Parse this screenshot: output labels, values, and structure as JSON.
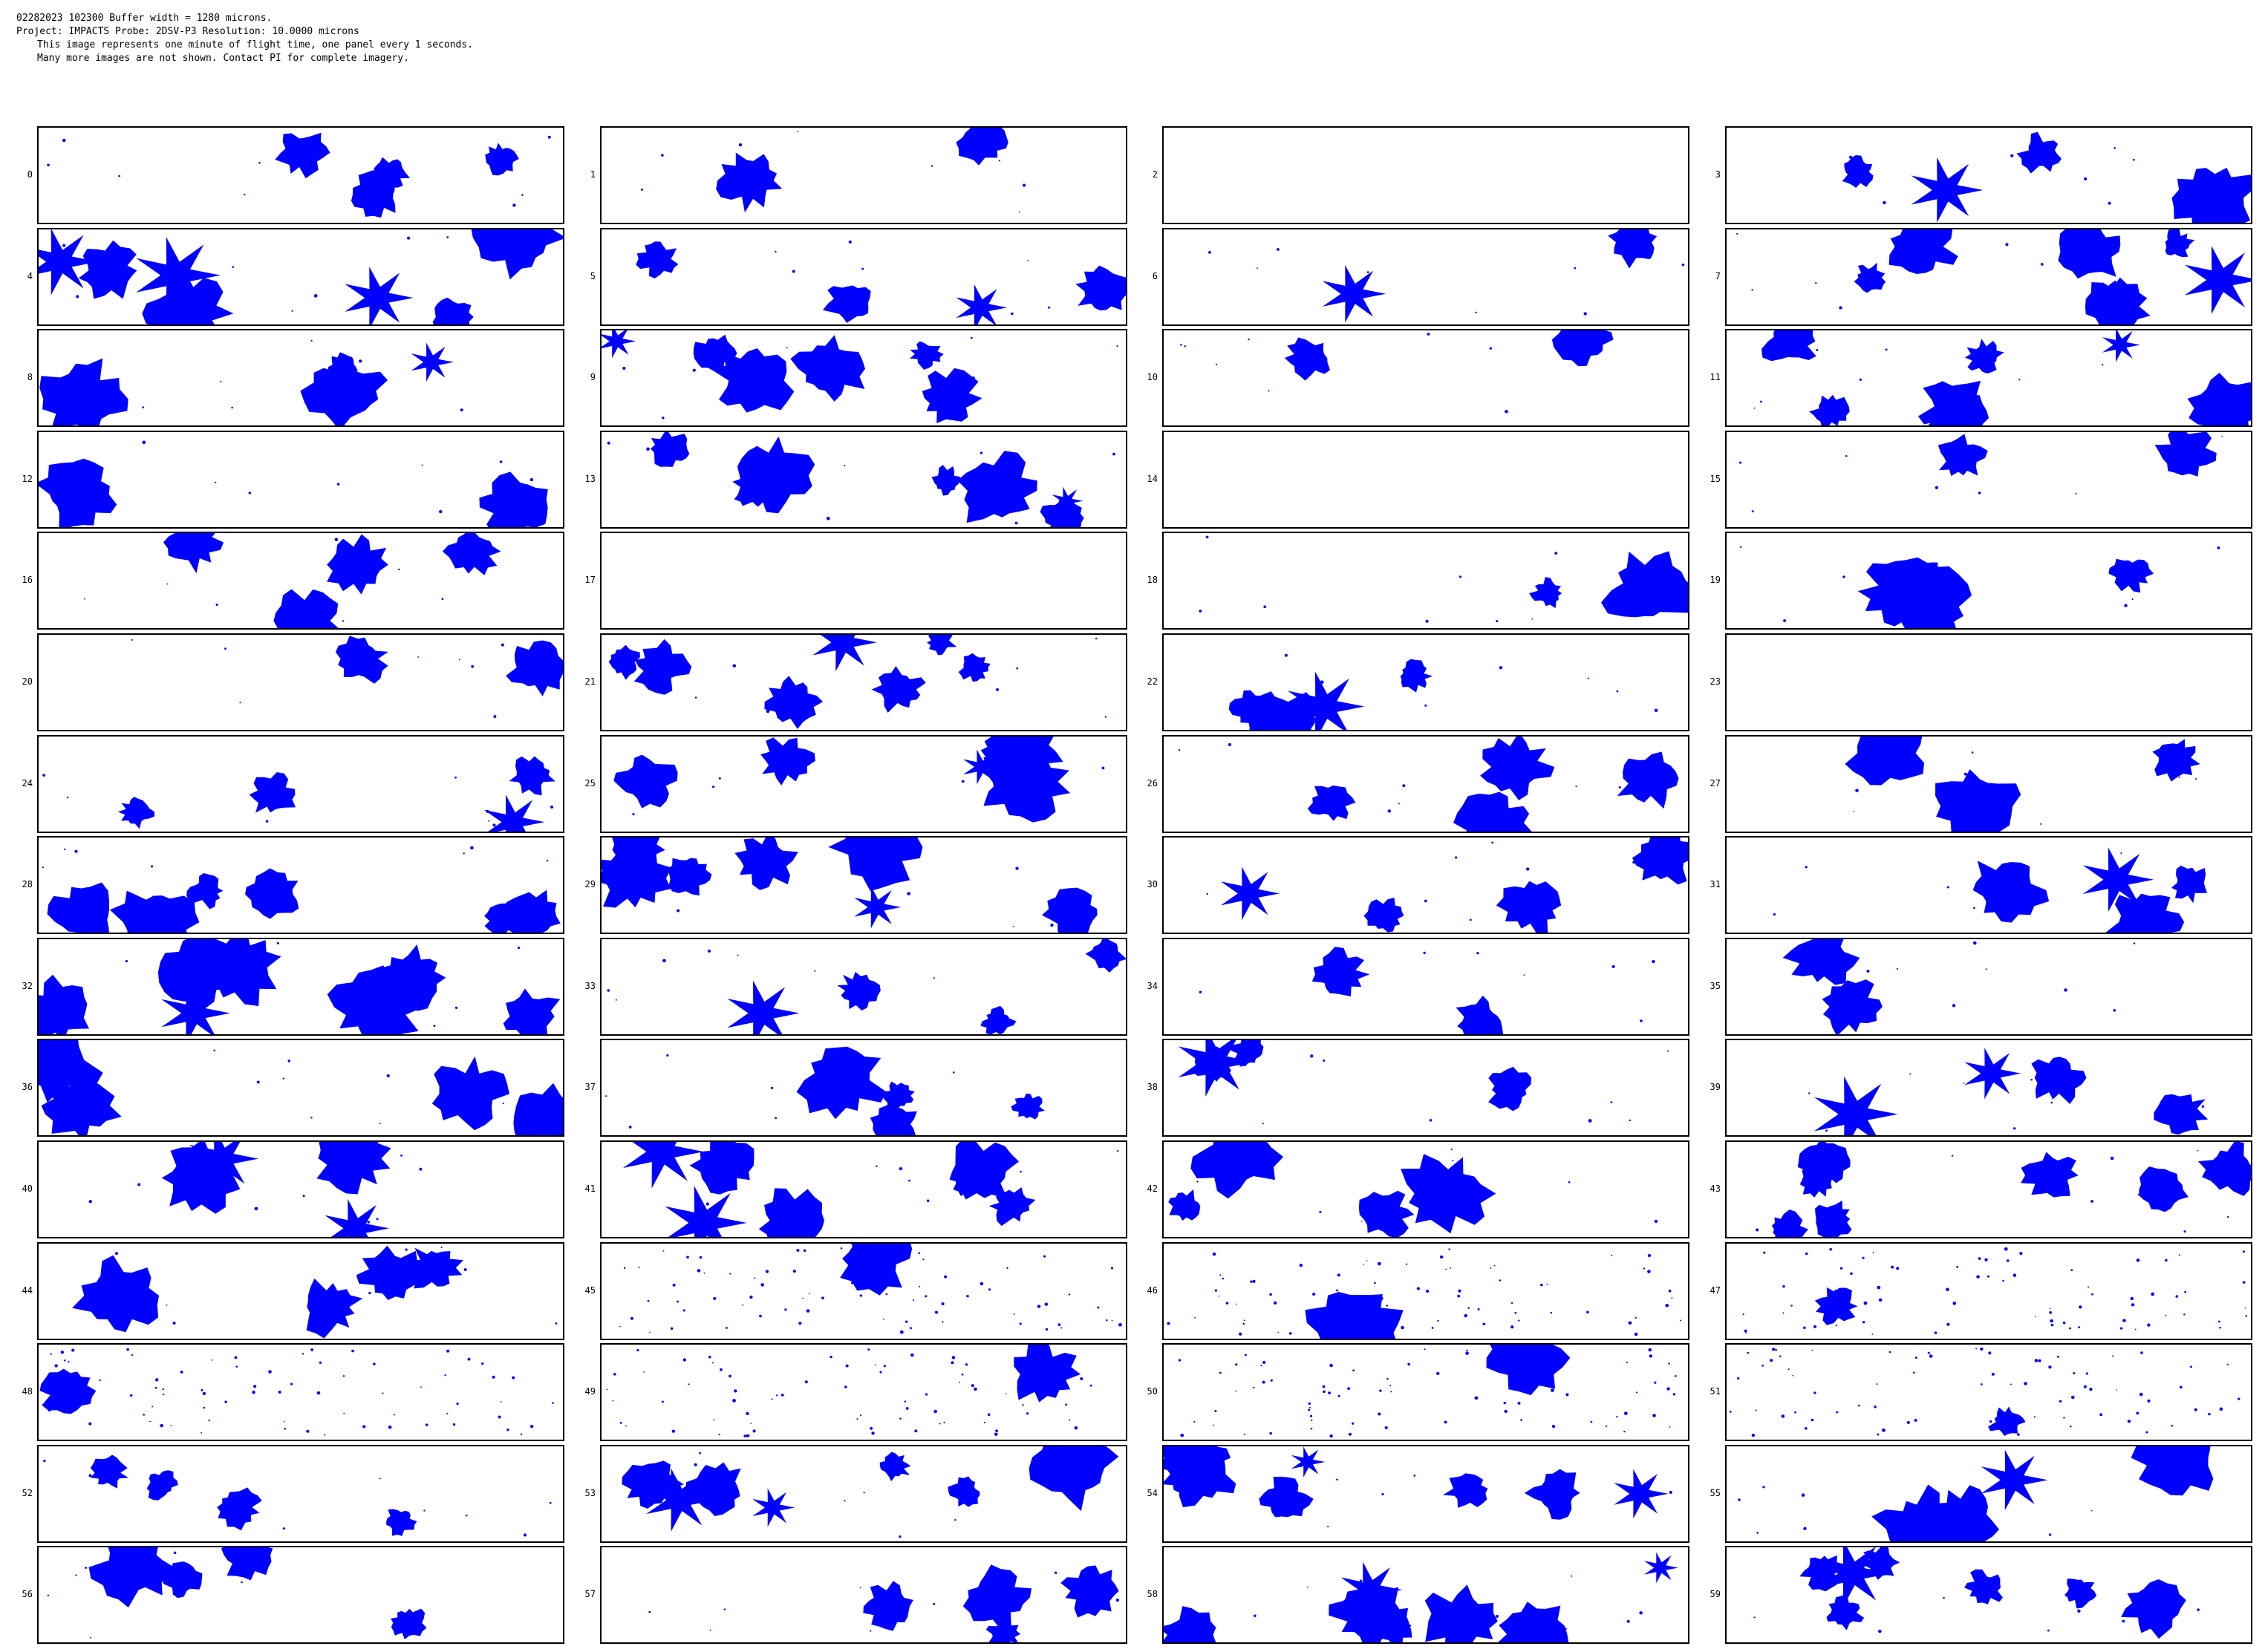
{
  "header": {
    "line1": "02282023 102300   Buffer width = 1280 microns.",
    "line2": "Project: IMPACTS   Probe: 2DSV-P3    Resolution: 10.0000 microns",
    "line3": "This image represents one minute of flight time, one panel every 1 seconds.",
    "line4": "Many more images are not shown.  Contact PI for complete imagery."
  },
  "colors": {
    "particle": "#0000ff",
    "border": "#000000",
    "background": "#ffffff"
  },
  "panels": [
    {
      "label": "0",
      "density": "medium",
      "seed": 11
    },
    {
      "label": "1",
      "density": "low",
      "seed": 12
    },
    {
      "label": "2",
      "density": "empty",
      "seed": 13
    },
    {
      "label": "3",
      "density": "medium",
      "seed": 14
    },
    {
      "label": "4",
      "density": "high",
      "seed": 15
    },
    {
      "label": "5",
      "density": "medium",
      "seed": 16
    },
    {
      "label": "6",
      "density": "low",
      "seed": 17
    },
    {
      "label": "7",
      "density": "high",
      "seed": 18
    },
    {
      "label": "8",
      "density": "medium",
      "seed": 19
    },
    {
      "label": "9",
      "density": "high",
      "seed": 20
    },
    {
      "label": "10",
      "density": "low",
      "seed": 21
    },
    {
      "label": "11",
      "density": "high",
      "seed": 22
    },
    {
      "label": "12",
      "density": "low",
      "seed": 23
    },
    {
      "label": "13",
      "density": "high",
      "seed": 24
    },
    {
      "label": "14",
      "density": "empty",
      "seed": 25
    },
    {
      "label": "15",
      "density": "low",
      "seed": 26
    },
    {
      "label": "16",
      "density": "medium",
      "seed": 27
    },
    {
      "label": "17",
      "density": "empty",
      "seed": 28
    },
    {
      "label": "18",
      "density": "low",
      "seed": 29
    },
    {
      "label": "19",
      "density": "medium",
      "seed": 30
    },
    {
      "label": "20",
      "density": "low",
      "seed": 31
    },
    {
      "label": "21",
      "density": "high",
      "seed": 32
    },
    {
      "label": "22",
      "density": "medium",
      "seed": 33
    },
    {
      "label": "23",
      "density": "empty",
      "seed": 34
    },
    {
      "label": "24",
      "density": "medium",
      "seed": 35
    },
    {
      "label": "25",
      "density": "high",
      "seed": 36
    },
    {
      "label": "26",
      "density": "medium",
      "seed": 37
    },
    {
      "label": "27",
      "density": "medium",
      "seed": 38
    },
    {
      "label": "28",
      "density": "high",
      "seed": 39
    },
    {
      "label": "29",
      "density": "high",
      "seed": 40
    },
    {
      "label": "30",
      "density": "medium",
      "seed": 41
    },
    {
      "label": "31",
      "density": "medium",
      "seed": 42
    },
    {
      "label": "32",
      "density": "high",
      "seed": 43
    },
    {
      "label": "33",
      "density": "medium",
      "seed": 44
    },
    {
      "label": "34",
      "density": "low",
      "seed": 45
    },
    {
      "label": "35",
      "density": "low",
      "seed": 46
    },
    {
      "label": "36",
      "density": "medium",
      "seed": 47
    },
    {
      "label": "37",
      "density": "medium",
      "seed": 48
    },
    {
      "label": "38",
      "density": "medium",
      "seed": 49
    },
    {
      "label": "39",
      "density": "medium",
      "seed": 50
    },
    {
      "label": "40",
      "density": "medium",
      "seed": 51
    },
    {
      "label": "41",
      "density": "high",
      "seed": 52
    },
    {
      "label": "42",
      "density": "medium",
      "seed": 53
    },
    {
      "label": "43",
      "density": "high",
      "seed": 54
    },
    {
      "label": "44",
      "density": "medium",
      "seed": 55
    },
    {
      "label": "45",
      "density": "sparse",
      "seed": 56
    },
    {
      "label": "46",
      "density": "sparse",
      "seed": 57
    },
    {
      "label": "47",
      "density": "sparse",
      "seed": 58
    },
    {
      "label": "48",
      "density": "sparse",
      "seed": 59
    },
    {
      "label": "49",
      "density": "sparse",
      "seed": 60
    },
    {
      "label": "50",
      "density": "sparse",
      "seed": 61
    },
    {
      "label": "51",
      "density": "sparse",
      "seed": 62
    },
    {
      "label": "52",
      "density": "medium",
      "seed": 63
    },
    {
      "label": "53",
      "density": "high",
      "seed": 64
    },
    {
      "label": "54",
      "density": "high",
      "seed": 65
    },
    {
      "label": "55",
      "density": "medium",
      "seed": 66
    },
    {
      "label": "56",
      "density": "medium",
      "seed": 67
    },
    {
      "label": "57",
      "density": "medium",
      "seed": 68
    },
    {
      "label": "58",
      "density": "high",
      "seed": 69
    },
    {
      "label": "59",
      "density": "high",
      "seed": 70
    }
  ]
}
